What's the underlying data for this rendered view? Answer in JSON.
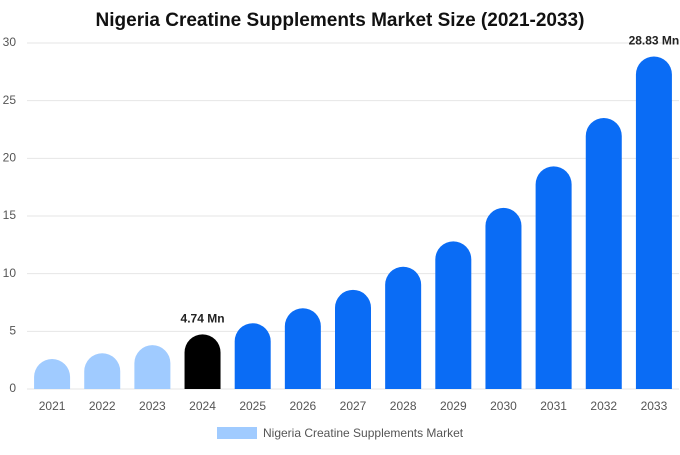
{
  "chart_data": {
    "type": "bar",
    "title": "Nigeria Creatine Supplements Market Size (2021-2033)",
    "categories": [
      "2021",
      "2022",
      "2023",
      "2024",
      "2025",
      "2026",
      "2027",
      "2028",
      "2029",
      "2030",
      "2031",
      "2032",
      "2033"
    ],
    "series": [
      {
        "name": "Nigeria Creatine Supplements Market",
        "color": "#a0cbff",
        "colors": [
          "#a0cbff",
          "#a0cbff",
          "#a0cbff",
          "#000000",
          "#0a6cf5",
          "#0a6cf5",
          "#0a6cf5",
          "#0a6cf5",
          "#0a6cf5",
          "#0a6cf5",
          "#0a6cf5",
          "#0a6cf5",
          "#0a6cf5"
        ],
        "values": [
          2.6,
          3.1,
          3.8,
          4.74,
          5.7,
          7.0,
          8.6,
          10.6,
          12.8,
          15.7,
          19.3,
          23.5,
          28.83
        ],
        "value_labels": [
          null,
          null,
          null,
          "4.74 Mn",
          null,
          null,
          null,
          null,
          null,
          null,
          null,
          null,
          "28.83 Mn"
        ]
      }
    ],
    "ylim": [
      0,
      30
    ],
    "yticks": [
      0,
      5,
      10,
      15,
      20,
      25,
      30
    ],
    "grid": true
  }
}
